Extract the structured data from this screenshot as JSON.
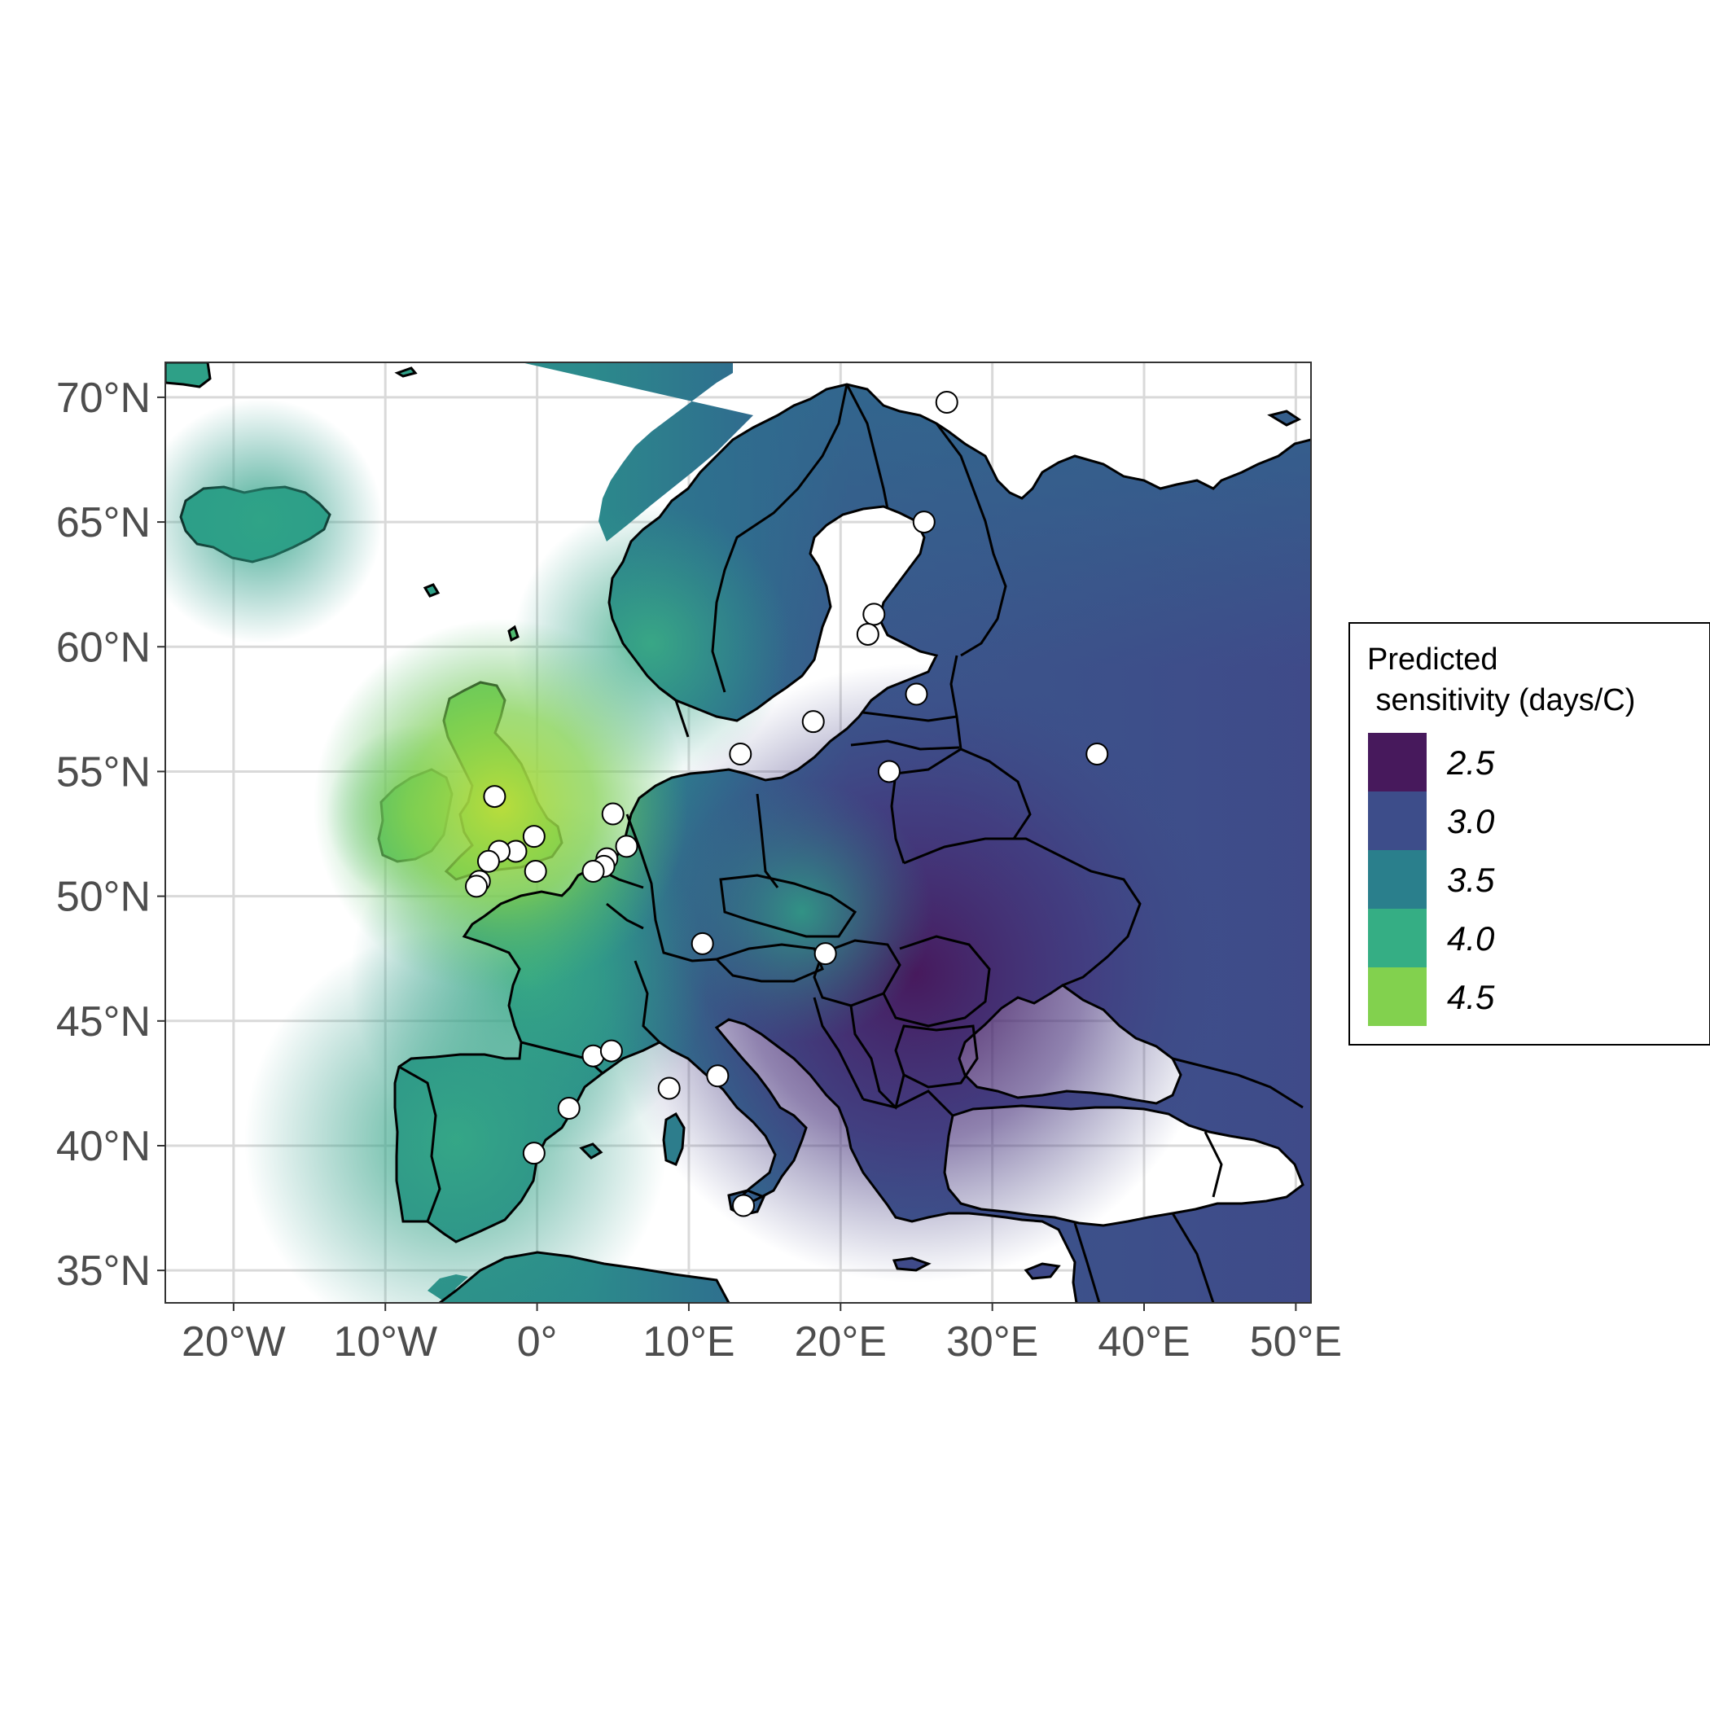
{
  "chart_data": {
    "type": "map",
    "title": "",
    "xlabel": "",
    "ylabel": "",
    "xlim": [
      -24.5,
      51
    ],
    "ylim": [
      33.7,
      71.4
    ],
    "grid": true,
    "legend_position": "right",
    "x_ticks": [
      {
        "value": -20,
        "label": "20°W"
      },
      {
        "value": -10,
        "label": "10°W"
      },
      {
        "value": 0,
        "label": "0°"
      },
      {
        "value": 10,
        "label": "10°E"
      },
      {
        "value": 20,
        "label": "20°E"
      },
      {
        "value": 30,
        "label": "30°E"
      },
      {
        "value": 40,
        "label": "40°E"
      },
      {
        "value": 50,
        "label": "50°E"
      }
    ],
    "y_ticks": [
      {
        "value": 35,
        "label": "35°N"
      },
      {
        "value": 40,
        "label": "40°N"
      },
      {
        "value": 45,
        "label": "45°N"
      },
      {
        "value": 50,
        "label": "50°N"
      },
      {
        "value": 55,
        "label": "55°N"
      },
      {
        "value": 60,
        "label": "60°N"
      },
      {
        "value": 65,
        "label": "65°N"
      },
      {
        "value": 70,
        "label": "70°N"
      }
    ],
    "legend": {
      "title_line1": "Predicted",
      "title_line2": " sensitivity (days/C)",
      "entries": [
        {
          "label": "2.5",
          "color": "#47195c"
        },
        {
          "label": "3.0",
          "color": "#3d4d8a"
        },
        {
          "label": "3.5",
          "color": "#2a7f8c"
        },
        {
          "label": "4.0",
          "color": "#35ae84"
        },
        {
          "label": "4.5",
          "color": "#82d14e"
        }
      ]
    },
    "sites": [
      {
        "lon": 27.0,
        "lat": 69.8
      },
      {
        "lon": 25.5,
        "lat": 65.0
      },
      {
        "lon": 22.2,
        "lat": 61.3
      },
      {
        "lon": 21.8,
        "lat": 60.5
      },
      {
        "lon": 25.0,
        "lat": 58.1
      },
      {
        "lon": 18.2,
        "lat": 57.0
      },
      {
        "lon": 13.4,
        "lat": 55.7
      },
      {
        "lon": 23.2,
        "lat": 55.0
      },
      {
        "lon": 36.9,
        "lat": 55.7
      },
      {
        "lon": 5.0,
        "lat": 53.3
      },
      {
        "lon": 5.9,
        "lat": 52.0
      },
      {
        "lon": 4.6,
        "lat": 51.5
      },
      {
        "lon": 4.4,
        "lat": 51.2
      },
      {
        "lon": 3.7,
        "lat": 51.0
      },
      {
        "lon": -2.8,
        "lat": 54.0
      },
      {
        "lon": -0.2,
        "lat": 52.4
      },
      {
        "lon": -1.4,
        "lat": 51.8
      },
      {
        "lon": -2.5,
        "lat": 51.8
      },
      {
        "lon": -3.2,
        "lat": 51.4
      },
      {
        "lon": -0.1,
        "lat": 51.0
      },
      {
        "lon": -3.8,
        "lat": 50.6
      },
      {
        "lon": -4.0,
        "lat": 50.4
      },
      {
        "lon": 10.9,
        "lat": 48.1
      },
      {
        "lon": 19.0,
        "lat": 47.7
      },
      {
        "lon": 3.7,
        "lat": 43.6
      },
      {
        "lon": 4.9,
        "lat": 43.8
      },
      {
        "lon": 11.9,
        "lat": 42.8
      },
      {
        "lon": 8.7,
        "lat": 42.3
      },
      {
        "lon": 2.1,
        "lat": 41.5
      },
      {
        "lon": -0.2,
        "lat": 39.7
      },
      {
        "lon": 13.6,
        "lat": 37.6
      }
    ]
  }
}
